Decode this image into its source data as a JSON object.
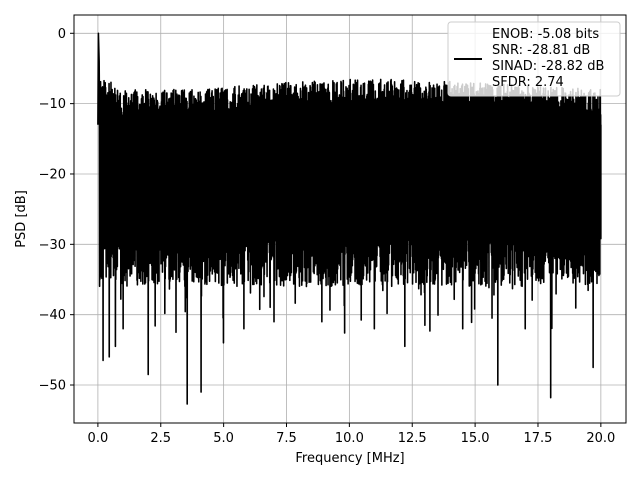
{
  "chart_data": {
    "type": "line",
    "title": "",
    "xlabel": "Frequency [MHz]",
    "ylabel": "PSD [dB]",
    "xlim": [
      -0.95,
      21.0
    ],
    "ylim": [
      -55.4,
      2.6
    ],
    "x_ticks": [
      0.0,
      2.5,
      5.0,
      7.5,
      10.0,
      12.5,
      15.0,
      17.5,
      20.0
    ],
    "x_tick_labels": [
      "0.0",
      "2.5",
      "5.0",
      "7.5",
      "10.0",
      "12.5",
      "15.0",
      "17.5",
      "20.0"
    ],
    "y_ticks": [
      0,
      -10,
      -20,
      -30,
      -40,
      -50
    ],
    "y_tick_labels": [
      "0",
      "−10",
      "−20",
      "−30",
      "−40",
      "−50"
    ],
    "grid": true,
    "legend_position": "top-right",
    "line_color": "#000000",
    "series": [
      {
        "name": "ENOB: -5.08 bits\nSNR: -28.81 dB\nSINAD: -28.82 dB\nSFDR: 2.74",
        "legend_lines": [
          "ENOB: -5.08 bits",
          "SNR: -28.81 dB",
          "SINAD: -28.82 dB",
          "SFDR: 2.74"
        ],
        "description": "noise-like PSD spanning 0 to 20 MHz",
        "x_range": [
          0.0,
          20.0
        ],
        "peak": {
          "x": 0.02,
          "y": 0.0
        },
        "upper_envelope": [
          [
            0.1,
            -6
          ],
          [
            1.0,
            -8
          ],
          [
            2.5,
            -8
          ],
          [
            4.0,
            -8
          ],
          [
            5.5,
            -7.5
          ],
          [
            7.5,
            -7
          ],
          [
            10.0,
            -6.5
          ],
          [
            12.5,
            -6.5
          ],
          [
            15.0,
            -7
          ],
          [
            17.5,
            -7.5
          ],
          [
            20.0,
            -8
          ]
        ],
        "typical_floor": -30,
        "notable_dips": [
          {
            "x": 0.2,
            "y": -46.5
          },
          {
            "x": 0.45,
            "y": -46
          },
          {
            "x": 0.7,
            "y": -44.5
          },
          {
            "x": 1.0,
            "y": -42
          },
          {
            "x": 2.0,
            "y": -48.5
          },
          {
            "x": 3.1,
            "y": -42.5
          },
          {
            "x": 3.55,
            "y": -52.7
          },
          {
            "x": 4.1,
            "y": -51
          },
          {
            "x": 5.0,
            "y": -44
          },
          {
            "x": 5.8,
            "y": -42
          },
          {
            "x": 7.0,
            "y": -41
          },
          {
            "x": 8.9,
            "y": -41
          },
          {
            "x": 11.0,
            "y": -42
          },
          {
            "x": 12.2,
            "y": -44.5
          },
          {
            "x": 13.0,
            "y": -41.5
          },
          {
            "x": 14.5,
            "y": -42
          },
          {
            "x": 15.9,
            "y": -50
          },
          {
            "x": 17.0,
            "y": -42
          },
          {
            "x": 18.0,
            "y": -51.8
          },
          {
            "x": 19.7,
            "y": -47.5
          }
        ]
      }
    ]
  }
}
